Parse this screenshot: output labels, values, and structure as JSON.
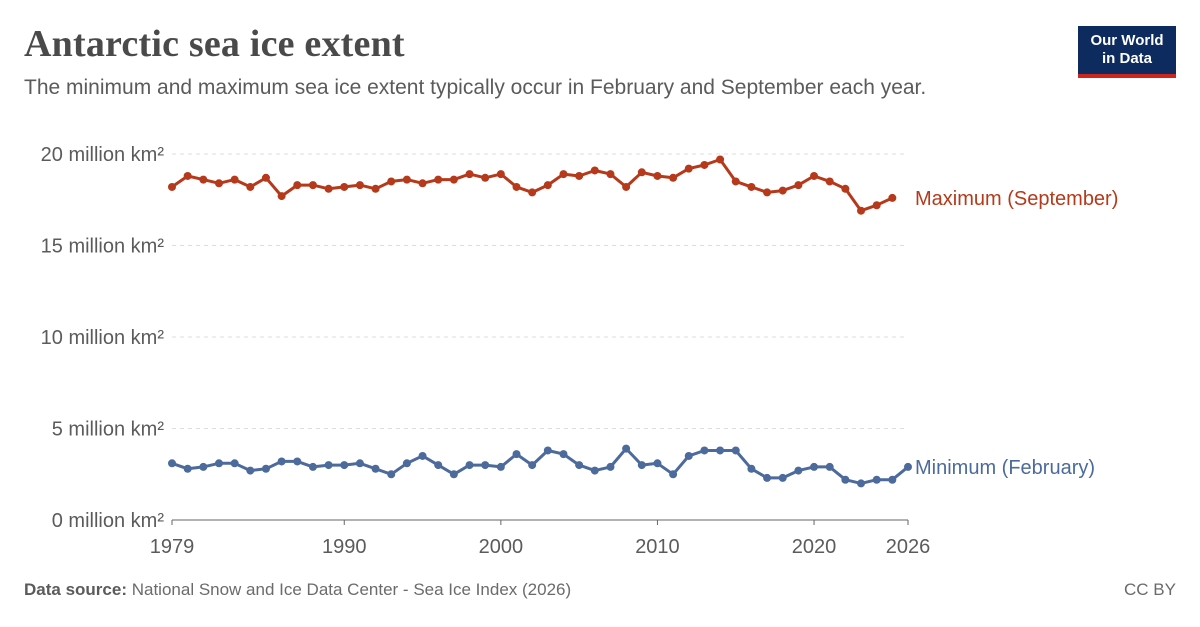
{
  "header": {
    "title": "Antarctic sea ice extent",
    "subtitle": "The minimum and maximum sea ice extent typically occur in February and September each year."
  },
  "logo": {
    "line1": "Our World",
    "line2": "in Data"
  },
  "footer": {
    "source_label": "Data source:",
    "source_text": "National Snow and Ice Data Center - Sea Ice Index (2026)",
    "license": "CC BY"
  },
  "colors": {
    "maximum": "#b5391a",
    "minimum": "#4c6a9c",
    "grid": "#dddddd",
    "axis": "#666666",
    "text": "#5b5b5b"
  },
  "chart_data": {
    "type": "line",
    "xlim": [
      1979,
      2026
    ],
    "ylim": [
      0,
      20
    ],
    "xticks": [
      1979,
      1990,
      2000,
      2010,
      2020,
      2026
    ],
    "yticks": [
      0,
      5,
      10,
      15,
      20
    ],
    "ytick_labels": [
      "0 million km²",
      "5 million km²",
      "10 million km²",
      "15 million km²",
      "20 million km²"
    ],
    "grid": true,
    "series": [
      {
        "name": "Maximum (September)",
        "color": "#b5391a",
        "x": [
          1979,
          1980,
          1981,
          1982,
          1983,
          1984,
          1985,
          1986,
          1987,
          1988,
          1989,
          1990,
          1991,
          1992,
          1993,
          1994,
          1995,
          1996,
          1997,
          1998,
          1999,
          2000,
          2001,
          2002,
          2003,
          2004,
          2005,
          2006,
          2007,
          2008,
          2009,
          2010,
          2011,
          2012,
          2013,
          2014,
          2015,
          2016,
          2017,
          2018,
          2019,
          2020,
          2021,
          2022,
          2023,
          2024,
          2025
        ],
        "values": [
          18.2,
          18.8,
          18.6,
          18.4,
          18.6,
          18.2,
          18.7,
          17.7,
          18.3,
          18.3,
          18.1,
          18.2,
          18.3,
          18.1,
          18.5,
          18.6,
          18.4,
          18.6,
          18.6,
          18.9,
          18.7,
          18.9,
          18.2,
          17.9,
          18.3,
          18.9,
          18.8,
          19.1,
          18.9,
          18.2,
          19.0,
          18.8,
          18.7,
          19.2,
          19.4,
          19.7,
          18.5,
          18.2,
          17.9,
          18.0,
          18.3,
          18.8,
          18.5,
          18.1,
          16.9,
          17.2,
          17.6
        ]
      },
      {
        "name": "Minimum (February)",
        "color": "#4c6a9c",
        "x": [
          1979,
          1980,
          1981,
          1982,
          1983,
          1984,
          1985,
          1986,
          1987,
          1988,
          1989,
          1990,
          1991,
          1992,
          1993,
          1994,
          1995,
          1996,
          1997,
          1998,
          1999,
          2000,
          2001,
          2002,
          2003,
          2004,
          2005,
          2006,
          2007,
          2008,
          2009,
          2010,
          2011,
          2012,
          2013,
          2014,
          2015,
          2016,
          2017,
          2018,
          2019,
          2020,
          2021,
          2022,
          2023,
          2024,
          2025,
          2026
        ],
        "values": [
          3.1,
          2.8,
          2.9,
          3.1,
          3.1,
          2.7,
          2.8,
          3.2,
          3.2,
          2.9,
          3.0,
          3.0,
          3.1,
          2.8,
          2.5,
          3.1,
          3.5,
          3.0,
          2.5,
          3.0,
          3.0,
          2.9,
          3.6,
          3.0,
          3.8,
          3.6,
          3.0,
          2.7,
          2.9,
          3.9,
          3.0,
          3.1,
          2.5,
          3.5,
          3.8,
          3.8,
          3.8,
          2.8,
          2.3,
          2.3,
          2.7,
          2.9,
          2.9,
          2.2,
          2.0,
          2.2,
          2.2,
          2.9
        ]
      }
    ]
  }
}
